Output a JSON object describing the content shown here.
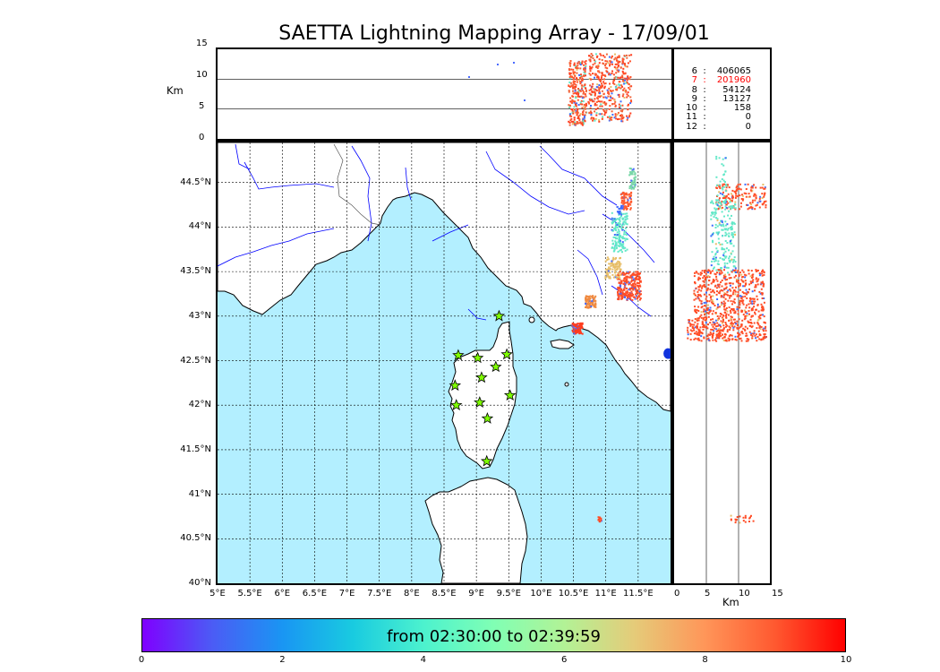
{
  "title": "SAETTA Lightning Mapping Array - 17/09/01",
  "colors": {
    "sea": "#b3efff",
    "land": "#ffffff",
    "coast": "#000000",
    "river": "#0000ff",
    "border": "#555555",
    "station": "#7fff00",
    "highlight_count": "#ff0000"
  },
  "top_panel": {
    "ylabel": "Km",
    "yticks": [
      "15",
      "10",
      "5",
      "0"
    ]
  },
  "side_panel": {
    "xlabel": "Km",
    "xticks": [
      "0",
      "5",
      "10",
      "15"
    ]
  },
  "map": {
    "lon_ticks": [
      "5°E",
      "5.5°E",
      "6°E",
      "6.5°E",
      "7°E",
      "7.5°E",
      "8°E",
      "8.5°E",
      "9°E",
      "9.5°E",
      "10°E",
      "10.5°E",
      "11°E",
      "11.5°E"
    ],
    "lat_ticks": [
      "40°N",
      "40.5°N",
      "41°N",
      "41.5°N",
      "42°N",
      "42.5°N",
      "43°N",
      "43.5°N",
      "44°N",
      "44.5°N"
    ],
    "lon_range": [
      5.0,
      12.0
    ],
    "lat_range": [
      40.0,
      44.95
    ],
    "stations": [
      {
        "lon": 9.35,
        "lat": 43.0
      },
      {
        "lon": 8.72,
        "lat": 42.56
      },
      {
        "lon": 9.02,
        "lat": 42.53
      },
      {
        "lon": 9.47,
        "lat": 42.57
      },
      {
        "lon": 9.08,
        "lat": 42.31
      },
      {
        "lon": 9.3,
        "lat": 42.43
      },
      {
        "lon": 8.67,
        "lat": 42.22
      },
      {
        "lon": 9.52,
        "lat": 42.11
      },
      {
        "lon": 8.69,
        "lat": 42.0
      },
      {
        "lon": 9.05,
        "lat": 42.03
      },
      {
        "lon": 9.17,
        "lat": 41.85
      },
      {
        "lon": 9.16,
        "lat": 41.37
      }
    ]
  },
  "stats": [
    {
      "k": "6",
      "v": "406065",
      "highlight": false
    },
    {
      "k": "7",
      "v": "201960",
      "highlight": true
    },
    {
      "k": "8",
      "v": "54124",
      "highlight": false
    },
    {
      "k": "9",
      "v": "13127",
      "highlight": false
    },
    {
      "k": "10",
      "v": "158",
      "highlight": false
    },
    {
      "k": "11",
      "v": "0",
      "highlight": false
    },
    {
      "k": "12",
      "v": "0",
      "highlight": false
    }
  ],
  "colorbar": {
    "label": "from 02:30:00 to 02:39:59",
    "ticks": [
      "0",
      "2",
      "4",
      "6",
      "8",
      "10"
    ],
    "range": [
      0,
      10
    ]
  }
}
